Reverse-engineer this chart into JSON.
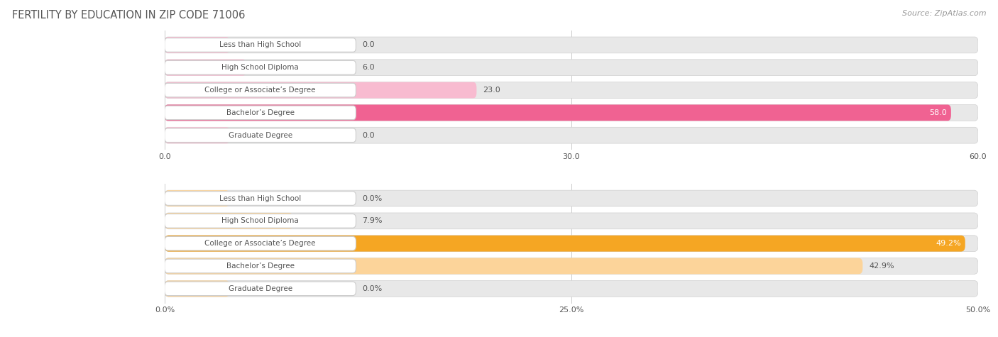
{
  "title": "FERTILITY BY EDUCATION IN ZIP CODE 71006",
  "source": "Source: ZipAtlas.com",
  "top_chart": {
    "categories": [
      "Less than High School",
      "High School Diploma",
      "College or Associate’s Degree",
      "Bachelor’s Degree",
      "Graduate Degree"
    ],
    "values": [
      0.0,
      6.0,
      23.0,
      58.0,
      0.0
    ],
    "bar_color_main": "#f06292",
    "bar_color_light": "#f8bbd0",
    "xlim": [
      0,
      60
    ],
    "xticks": [
      0.0,
      30.0,
      60.0
    ],
    "xtick_labels": [
      "0.0",
      "30.0",
      "60.0"
    ],
    "value_labels": [
      "0.0",
      "6.0",
      "23.0",
      "58.0",
      "0.0"
    ]
  },
  "bottom_chart": {
    "categories": [
      "Less than High School",
      "High School Diploma",
      "College or Associate’s Degree",
      "Bachelor’s Degree",
      "Graduate Degree"
    ],
    "values": [
      0.0,
      7.9,
      49.2,
      42.9,
      0.0
    ],
    "bar_color_main": "#f5a623",
    "bar_color_light": "#fcd49a",
    "xlim": [
      0,
      50
    ],
    "xticks": [
      0.0,
      25.0,
      50.0
    ],
    "xtick_labels": [
      "0.0%",
      "25.0%",
      "50.0%"
    ],
    "value_labels": [
      "0.0%",
      "7.9%",
      "49.2%",
      "42.9%",
      "0.0%"
    ]
  },
  "background_color": "#ffffff",
  "row_bg_color": "#e8e8e8",
  "label_box_color": "#ffffff",
  "label_box_edge": "#cccccc",
  "label_font_size": 7.5,
  "value_font_size": 8,
  "title_font_size": 10.5,
  "source_font_size": 8,
  "axis_font_size": 8,
  "title_color": "#555555",
  "source_color": "#999999",
  "text_color": "#555555"
}
